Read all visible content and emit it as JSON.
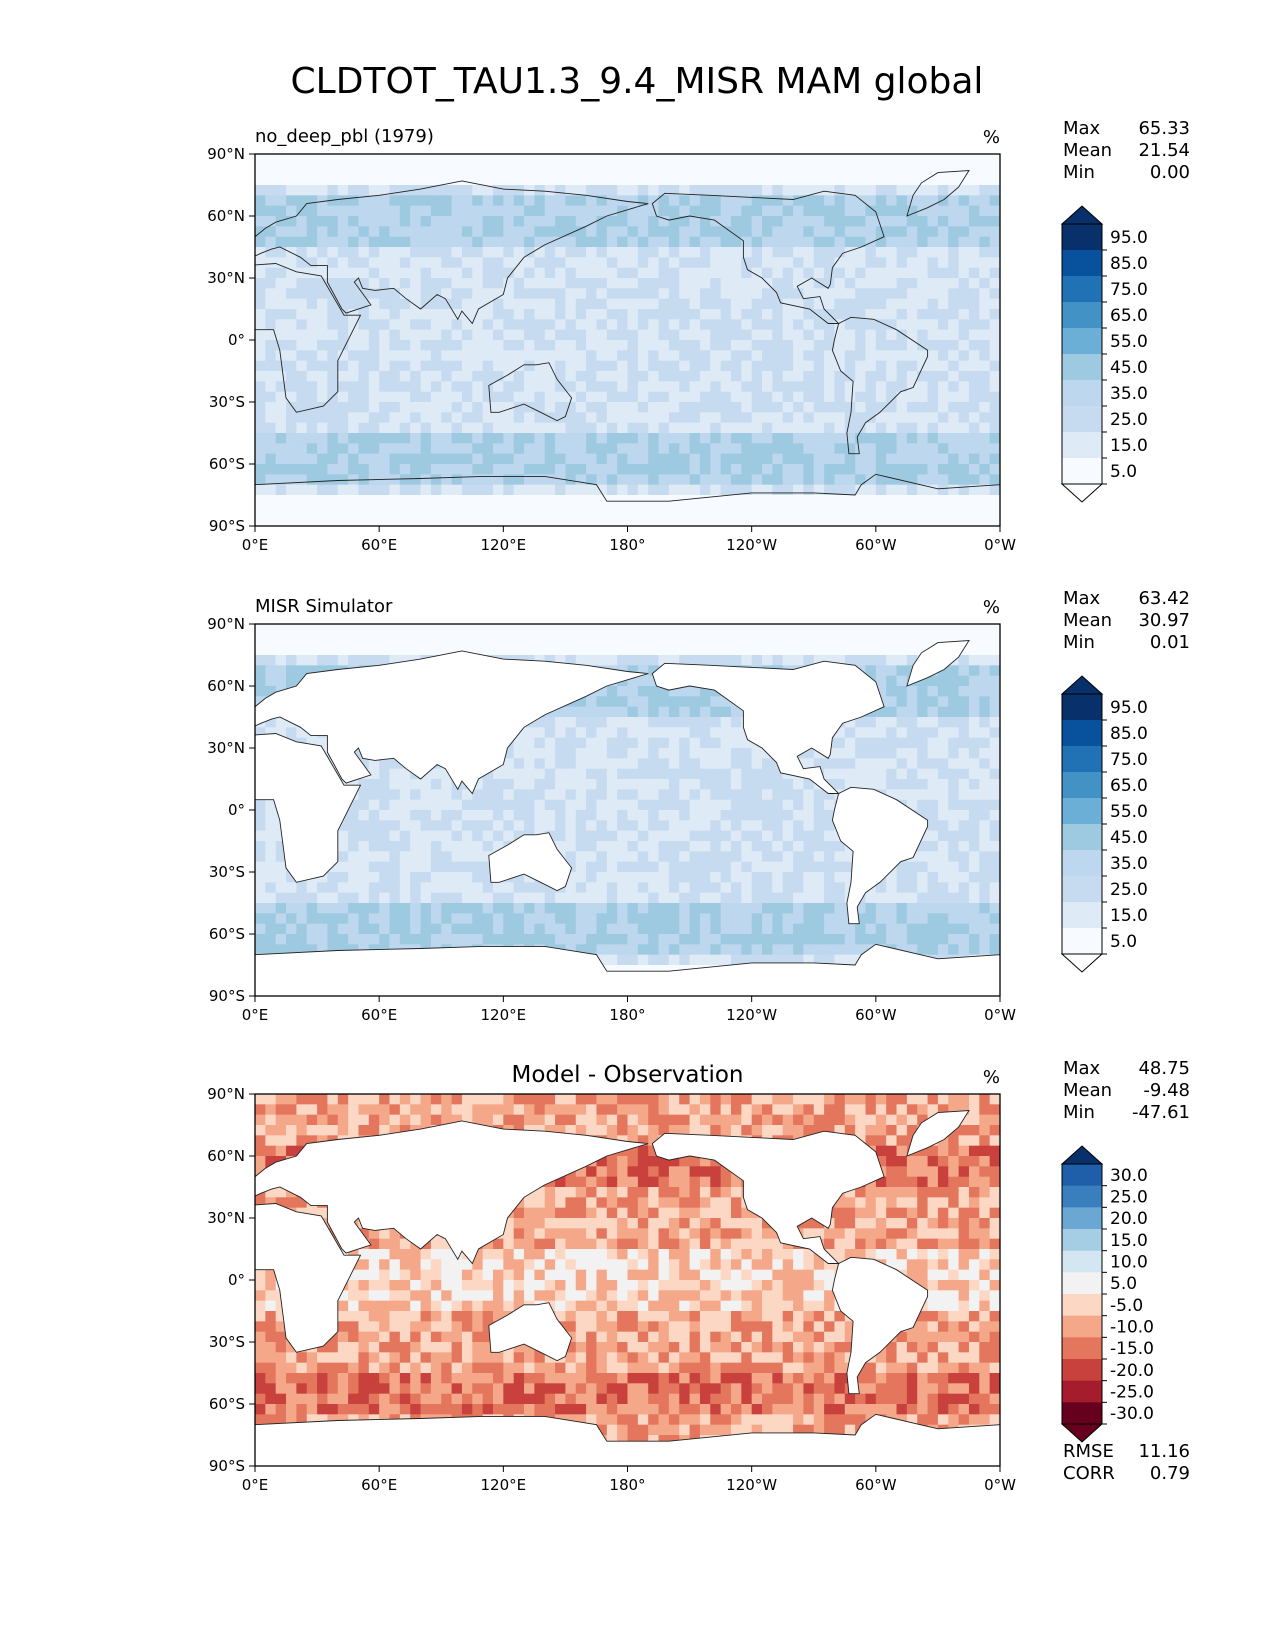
{
  "suptitle": "CLDTOT_TAU1.3_9.4_MISR MAM global",
  "chart_data": [
    {
      "type": "heatmap",
      "title": "no_deep_pbl (1979)",
      "units": "%",
      "stats": [
        {
          "label": "Max",
          "value": "65.33"
        },
        {
          "label": "Mean",
          "value": "21.54"
        },
        {
          "label": "Min",
          "value": "0.00"
        }
      ],
      "xticks": [
        "0°E",
        "60°E",
        "120°E",
        "180°",
        "120°W",
        "60°W",
        "0°W"
      ],
      "yticks": [
        "90°N",
        "60°N",
        "30°N",
        "0°",
        "30°S",
        "60°S",
        "90°S"
      ],
      "xlim": [
        0,
        360
      ],
      "ylim": [
        -90,
        90
      ],
      "colorbar": {
        "extend": "both",
        "labels": [
          "95.0",
          "85.0",
          "75.0",
          "65.0",
          "55.0",
          "45.0",
          "35.0",
          "25.0",
          "15.0",
          "5.0"
        ],
        "colors": [
          "#08306b",
          "#08519c",
          "#2171b5",
          "#4292c6",
          "#6baed6",
          "#9ecae1",
          "#bdd7ee",
          "#c6dbef",
          "#deebf7",
          "#f7fbff"
        ],
        "extend_top": "#08306b",
        "extend_bottom": "#ffffff"
      }
    },
    {
      "type": "heatmap",
      "title": "MISR Simulator",
      "units": "%",
      "stats": [
        {
          "label": "Max",
          "value": "63.42"
        },
        {
          "label": "Mean",
          "value": "30.97"
        },
        {
          "label": "Min",
          "value": "0.01"
        }
      ],
      "xticks": [
        "0°E",
        "60°E",
        "120°E",
        "180°",
        "120°W",
        "60°W",
        "0°W"
      ],
      "yticks": [
        "90°N",
        "60°N",
        "30°N",
        "0°",
        "30°S",
        "60°S",
        "90°S"
      ],
      "xlim": [
        0,
        360
      ],
      "ylim": [
        -90,
        90
      ],
      "colorbar": {
        "extend": "both",
        "labels": [
          "95.0",
          "85.0",
          "75.0",
          "65.0",
          "55.0",
          "45.0",
          "35.0",
          "25.0",
          "15.0",
          "5.0"
        ],
        "colors": [
          "#08306b",
          "#08519c",
          "#2171b5",
          "#4292c6",
          "#6baed6",
          "#9ecae1",
          "#bdd7ee",
          "#c6dbef",
          "#deebf7",
          "#f7fbff"
        ],
        "extend_top": "#08306b",
        "extend_bottom": "#ffffff"
      }
    },
    {
      "type": "heatmap",
      "title": "Model - Observation",
      "units": "%",
      "stats": [
        {
          "label": "Max",
          "value": "48.75"
        },
        {
          "label": "Mean",
          "value": "-9.48"
        },
        {
          "label": "Min",
          "value": "-47.61"
        }
      ],
      "extra_stats": [
        {
          "label": "RMSE",
          "value": "11.16"
        },
        {
          "label": "CORR",
          "value": "0.79"
        }
      ],
      "xticks": [
        "0°E",
        "60°E",
        "120°E",
        "180°",
        "120°W",
        "60°W",
        "0°W"
      ],
      "yticks": [
        "90°N",
        "60°N",
        "30°N",
        "0°",
        "30°S",
        "60°S",
        "90°S"
      ],
      "xlim": [
        0,
        360
      ],
      "ylim": [
        -90,
        90
      ],
      "colorbar": {
        "extend": "both",
        "labels": [
          "30.0",
          "25.0",
          "20.0",
          "15.0",
          "10.0",
          "5.0",
          "-5.0",
          "-10.0",
          "-15.0",
          "-20.0",
          "-25.0",
          "-30.0"
        ],
        "colors": [
          "#1f5ea8",
          "#3a7fbd",
          "#6aa8d3",
          "#a5cde3",
          "#d4e6f1",
          "#f2f2f2",
          "#fbd7c4",
          "#f5a889",
          "#e3765c",
          "#c8413c",
          "#a51c2d",
          "#67001f"
        ],
        "extend_top": "#08306b",
        "extend_bottom": "#67001f"
      }
    }
  ]
}
